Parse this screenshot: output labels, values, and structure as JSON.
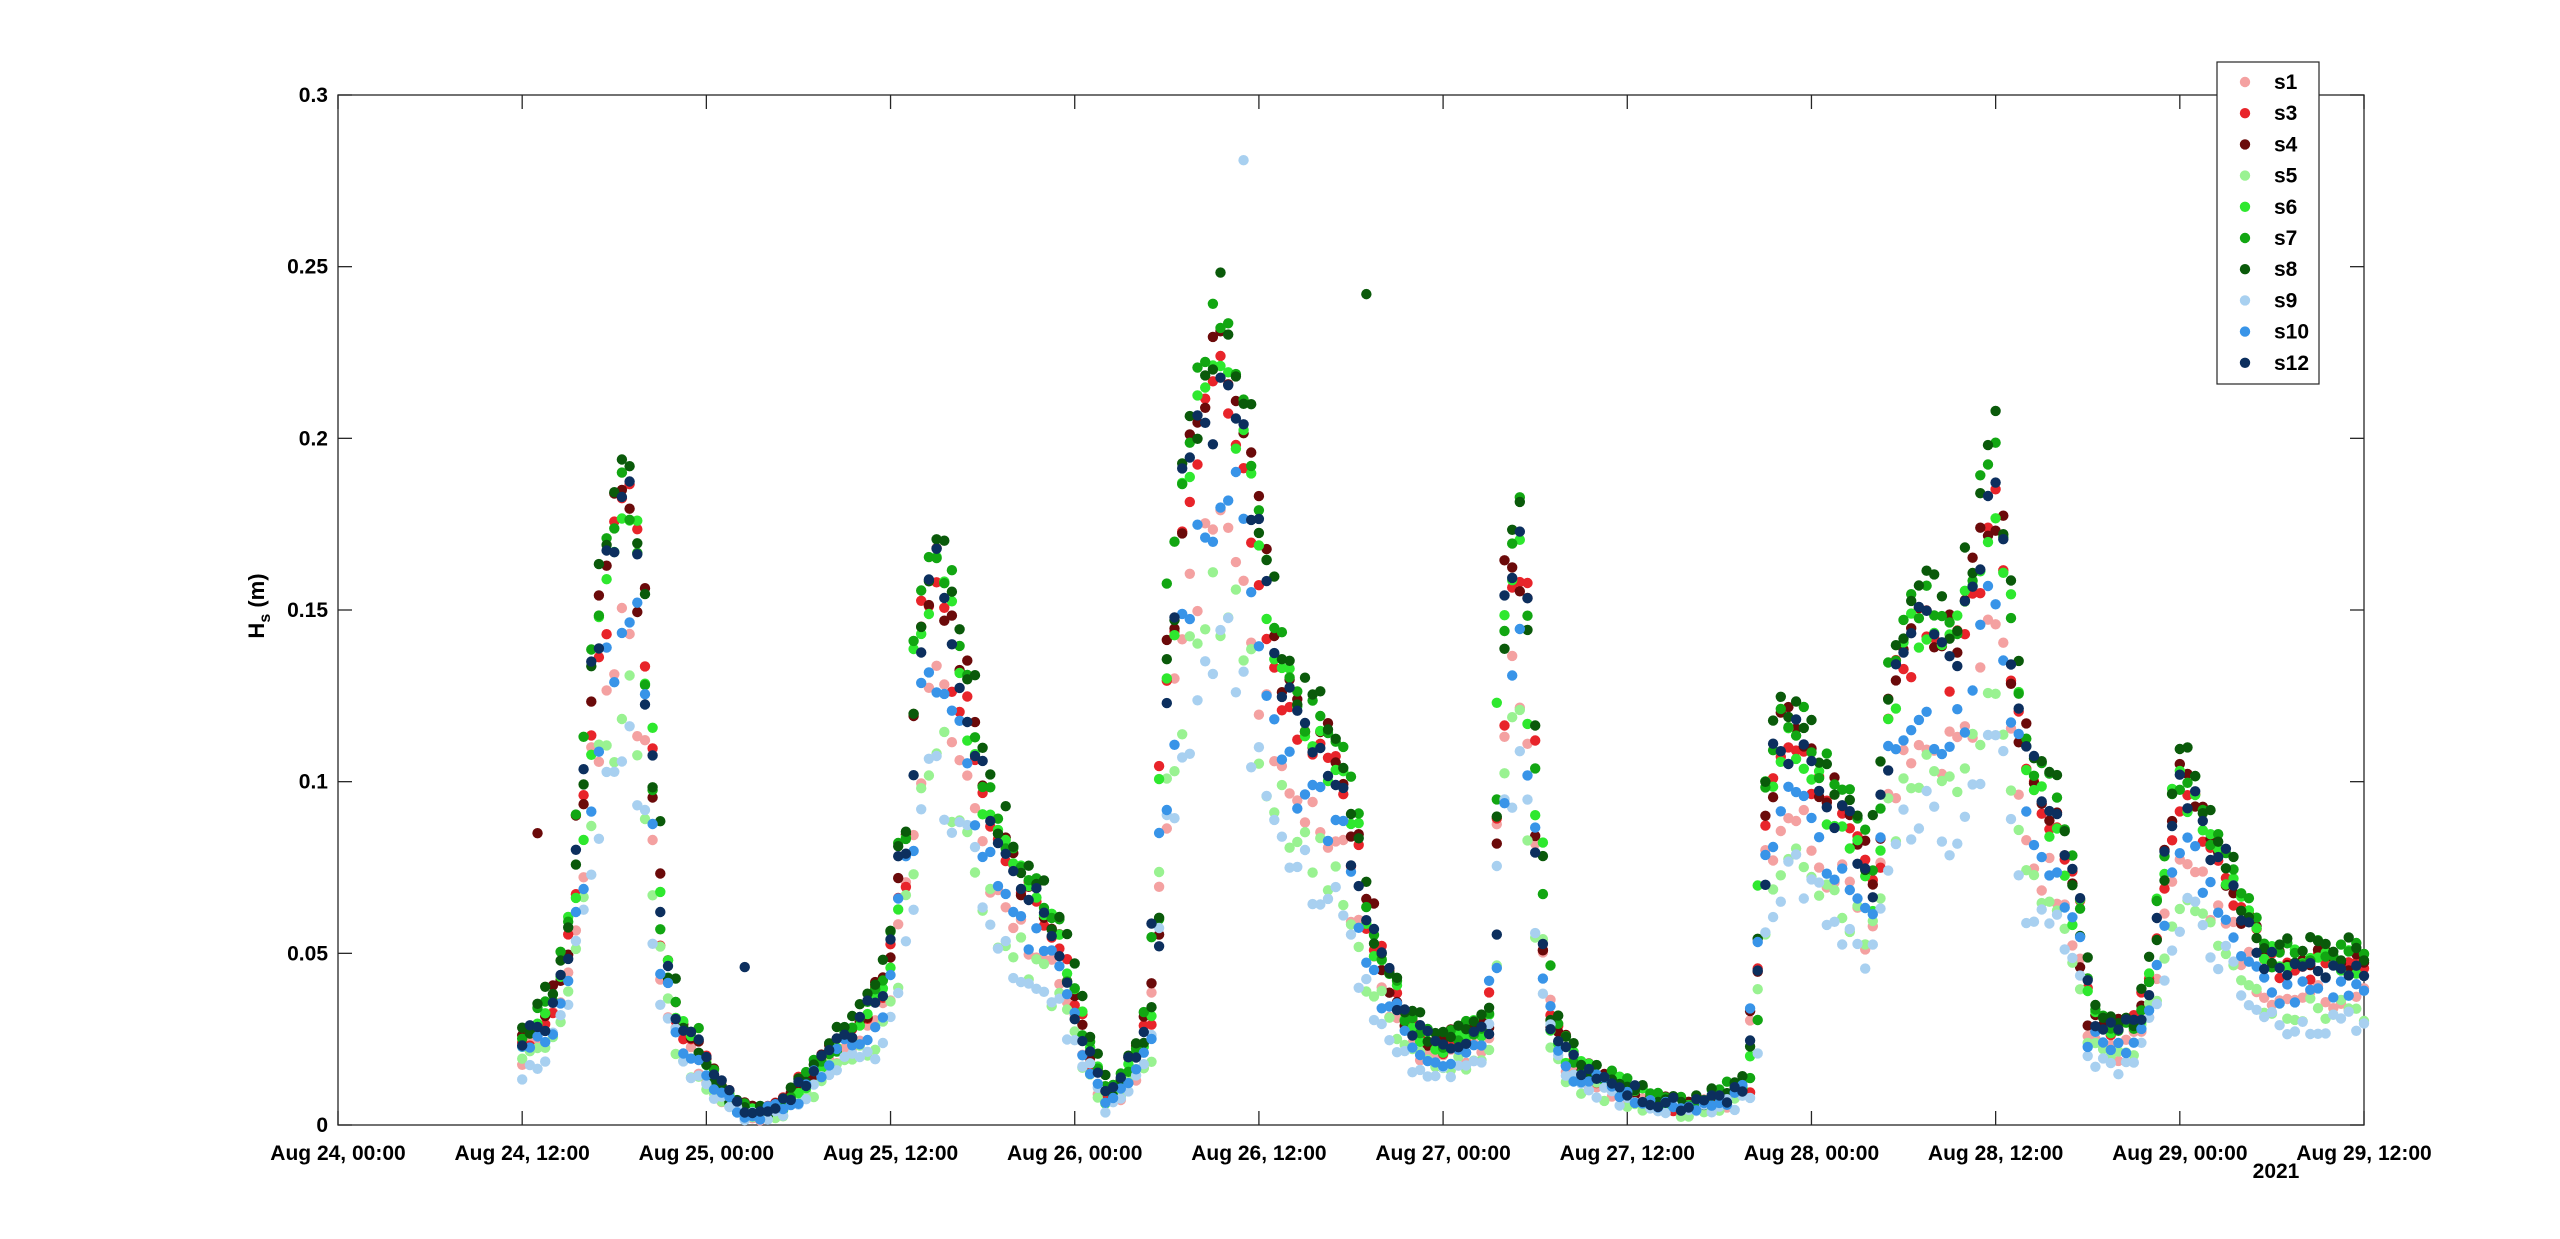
{
  "chart_data": {
    "type": "scatter",
    "title": "",
    "xlabel": "",
    "ylabel": "H",
    "ylabel_sub": "s",
    "ylabel_unit": " (m)",
    "year_label": "2021",
    "x_ticks": [
      "Aug 24, 00:00",
      "Aug 24, 12:00",
      "Aug 25, 00:00",
      "Aug 25, 12:00",
      "Aug 26, 00:00",
      "Aug 26, 12:00",
      "Aug 27, 00:00",
      "Aug 27, 12:00",
      "Aug 28, 00:00",
      "Aug 28, 12:00",
      "Aug 29, 00:00",
      "Aug 29, 12:00"
    ],
    "xlim_hours": [
      0,
      132
    ],
    "y_ticks": [
      "0",
      "0.05",
      "0.1",
      "0.15",
      "0.2",
      "0.25",
      "0.3"
    ],
    "ylim": [
      0,
      0.3
    ],
    "grid": false,
    "legend_position": "top-right",
    "series": [
      {
        "name": "s1",
        "color": "#f4a1a1",
        "offset": -0.012,
        "scale": 0.9
      },
      {
        "name": "s3",
        "color": "#e8242a",
        "offset": 0.004,
        "scale": 1.0
      },
      {
        "name": "s4",
        "color": "#6b0a0a",
        "offset": 0.008,
        "scale": 1.03
      },
      {
        "name": "s5",
        "color": "#99f291",
        "offset": -0.015,
        "scale": 0.82
      },
      {
        "name": "s6",
        "color": "#2ee82e",
        "offset": 0.006,
        "scale": 1.01
      },
      {
        "name": "s7",
        "color": "#12a612",
        "offset": 0.01,
        "scale": 1.05
      },
      {
        "name": "s8",
        "color": "#0a5a0a",
        "offset": 0.012,
        "scale": 1.06
      },
      {
        "name": "s9",
        "color": "#a8d0f0",
        "offset": -0.02,
        "scale": 0.78
      },
      {
        "name": "s10",
        "color": "#3894e8",
        "offset": -0.008,
        "scale": 0.92
      },
      {
        "name": "s12",
        "color": "#0c2f5e",
        "offset": 0.003,
        "scale": 1.02
      }
    ],
    "envelope_hours": [
      12,
      13,
      14,
      15,
      16,
      17,
      18,
      19,
      20,
      21,
      22,
      23,
      24,
      25,
      26,
      27,
      28,
      29,
      30,
      31,
      32,
      33,
      34,
      35,
      36,
      37,
      38,
      39,
      40,
      41,
      42,
      43,
      44,
      45,
      46,
      47,
      48,
      49,
      50,
      51,
      52,
      53,
      54,
      55,
      56,
      57,
      58,
      59,
      60,
      61,
      62,
      63,
      64,
      65,
      66,
      67,
      68,
      69,
      70,
      71,
      72,
      73,
      74,
      75,
      76,
      77,
      78,
      79,
      80,
      81,
      82,
      83,
      84,
      85,
      86,
      87,
      88,
      89,
      90,
      91,
      92,
      93,
      94,
      95,
      96,
      97,
      98,
      99,
      100,
      101,
      102,
      103,
      104,
      105,
      106,
      107,
      108,
      109,
      110,
      111,
      112,
      113,
      114,
      115,
      116,
      117,
      118,
      119,
      120,
      121,
      122,
      123,
      124,
      125,
      126,
      127,
      128,
      129,
      130,
      131,
      132
    ],
    "envelope_hs": [
      0.022,
      0.028,
      0.035,
      0.05,
      0.09,
      0.14,
      0.165,
      0.175,
      0.13,
      0.06,
      0.03,
      0.025,
      0.018,
      0.01,
      0.005,
      0.004,
      0.004,
      0.006,
      0.01,
      0.016,
      0.02,
      0.025,
      0.03,
      0.035,
      0.045,
      0.08,
      0.14,
      0.155,
      0.135,
      0.12,
      0.095,
      0.08,
      0.07,
      0.065,
      0.06,
      0.05,
      0.035,
      0.02,
      0.008,
      0.012,
      0.02,
      0.03,
      0.12,
      0.175,
      0.19,
      0.205,
      0.21,
      0.19,
      0.16,
      0.13,
      0.12,
      0.11,
      0.105,
      0.1,
      0.085,
      0.06,
      0.045,
      0.035,
      0.028,
      0.024,
      0.022,
      0.024,
      0.026,
      0.028,
      0.14,
      0.165,
      0.09,
      0.03,
      0.02,
      0.016,
      0.014,
      0.012,
      0.01,
      0.008,
      0.007,
      0.006,
      0.006,
      0.007,
      0.008,
      0.01,
      0.012,
      0.09,
      0.105,
      0.11,
      0.1,
      0.09,
      0.085,
      0.08,
      0.06,
      0.12,
      0.13,
      0.14,
      0.135,
      0.13,
      0.14,
      0.16,
      0.18,
      0.13,
      0.1,
      0.09,
      0.085,
      0.07,
      0.03,
      0.028,
      0.026,
      0.028,
      0.04,
      0.07,
      0.095,
      0.09,
      0.08,
      0.07,
      0.06,
      0.05,
      0.045,
      0.045,
      0.045,
      0.045,
      0.045,
      0.045,
      0.045
    ],
    "outliers": [
      {
        "series": "s9",
        "hour": 59.0,
        "hs": 0.281
      },
      {
        "series": "s8",
        "hour": 67.0,
        "hs": 0.242
      },
      {
        "series": "s4",
        "hour": 13.0,
        "hs": 0.085
      },
      {
        "series": "s12",
        "hour": 26.5,
        "hs": 0.046
      }
    ]
  }
}
